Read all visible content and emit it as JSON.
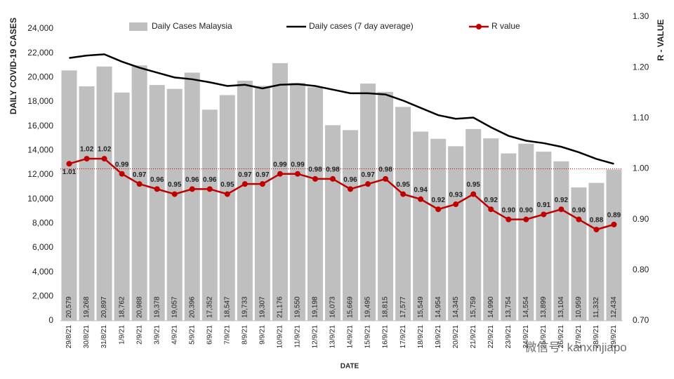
{
  "chart_data": {
    "type": "bar-line-combo",
    "y_label": "DAILY COVID-19 CASES",
    "y2_label": "R - VALUE",
    "x_label": "DATE",
    "watermark": "微信号: kanxinjiapo",
    "categories": [
      "29/8/21",
      "30/8/21",
      "31/8/21",
      "1/9/21",
      "2/9/21",
      "3/9/21",
      "4/9/21",
      "5/9/21",
      "6/9/21",
      "7/9/21",
      "8/9/21",
      "9/9/21",
      "10/9/21",
      "11/9/21",
      "12/9/21",
      "13/9/21",
      "14/9/21",
      "15/9/21",
      "16/9/21",
      "17/9/21",
      "18/9/21",
      "19/9/21",
      "20/9/21",
      "21/9/21",
      "22/9/21",
      "23/9/21",
      "24/9/21",
      "25/9/21",
      "26/9/21",
      "27/9/21",
      "28/9/21",
      "29/9/21"
    ],
    "series": [
      {
        "name": "Daily Cases Malaysia",
        "kind": "bar",
        "color": "#bfbfbf",
        "values": [
          20579,
          19268,
          20897,
          18762,
          20988,
          19378,
          19057,
          20396,
          17352,
          18547,
          19733,
          19307,
          21176,
          19550,
          19198,
          16073,
          15669,
          19495,
          18815,
          17577,
          15549,
          14954,
          14345,
          15759,
          14990,
          13754,
          14554,
          13899,
          13104,
          10959,
          11332,
          12434
        ],
        "value_labels": [
          "20,579",
          "19,268",
          "20,897",
          "18,762",
          "20,988",
          "19,378",
          "19,057",
          "20,396",
          "17,352",
          "18,547",
          "19,733",
          "19,307",
          "21,176",
          "19,550",
          "19,198",
          "16,073",
          "15,669",
          "19,495",
          "18,815",
          "17,577",
          "15,549",
          "14,954",
          "14,345",
          "15,759",
          "14,990",
          "13,754",
          "14,554",
          "13,899",
          "13,104",
          "10,959",
          "11,332",
          "12,434"
        ]
      },
      {
        "name": "Daily cases (7 day average)",
        "kind": "line",
        "color": "#000000",
        "values": [
          21600,
          21800,
          21900,
          21300,
          20800,
          20400,
          20000,
          19850,
          19600,
          19300,
          19400,
          19100,
          19400,
          19450,
          19300,
          19000,
          18700,
          18700,
          18600,
          18100,
          17500,
          16900,
          16600,
          16700,
          15900,
          15200,
          14800,
          14600,
          14300,
          13850,
          13300,
          12900
        ]
      },
      {
        "name": "R value",
        "kind": "line-marker",
        "color": "#c00000",
        "axis": "y2",
        "values": [
          1.01,
          1.02,
          1.02,
          0.99,
          0.97,
          0.96,
          0.95,
          0.96,
          0.96,
          0.95,
          0.97,
          0.97,
          0.99,
          0.99,
          0.98,
          0.98,
          0.96,
          0.97,
          0.98,
          0.95,
          0.94,
          0.92,
          0.93,
          0.95,
          0.92,
          0.9,
          0.9,
          0.91,
          0.92,
          0.9,
          0.88,
          0.89
        ],
        "value_labels": [
          "1.01",
          "1.02",
          "1.02",
          "0.99",
          "0.97",
          "0.96",
          "0.95",
          "0.96",
          "0.96",
          "0.95",
          "0.97",
          "0.97",
          "0.99",
          "0.99",
          "0.98",
          "0.98",
          "0.96",
          "0.97",
          "0.98",
          "0.95",
          "0.94",
          "0.92",
          "0.93",
          "0.95",
          "0.92",
          "0.90",
          "0.90",
          "0.91",
          "0.92",
          "0.90",
          "0.88",
          "0.89"
        ]
      }
    ],
    "ylim": [
      0,
      24000
    ],
    "yticks": [
      0,
      {
        "value": 2000,
        "label": "2,000"
      },
      {
        "value": 4000,
        "label": "4,000"
      },
      {
        "value": 6000,
        "label": "6,000"
      },
      {
        "value": 8000,
        "label": "8,000"
      },
      {
        "value": 10000,
        "label": "10,000"
      },
      {
        "value": 12000,
        "label": "12,000"
      },
      {
        "value": 14000,
        "label": "14,000"
      },
      {
        "value": 16000,
        "label": "16,000"
      },
      {
        "value": 18000,
        "label": "18,000"
      },
      {
        "value": 20000,
        "label": "20,000"
      },
      {
        "value": 22000,
        "label": "22,000"
      },
      {
        "value": 24000,
        "label": "24,000"
      }
    ],
    "y2lim": [
      0.7,
      1.3
    ],
    "y2ticks": [
      {
        "value": 0.7,
        "label": "0.70"
      },
      {
        "value": 0.8,
        "label": "0.80"
      },
      {
        "value": 0.9,
        "label": "0.90"
      },
      {
        "value": 1,
        "label": "1.00"
      },
      {
        "value": 1.1,
        "label": "1.10"
      },
      {
        "value": 1.2,
        "label": "1.20"
      },
      {
        "value": 1.3,
        "label": "1.30"
      }
    ],
    "reference_line": {
      "value": 1,
      "axis": "y2",
      "color": "#c00000"
    },
    "legend": "top"
  }
}
